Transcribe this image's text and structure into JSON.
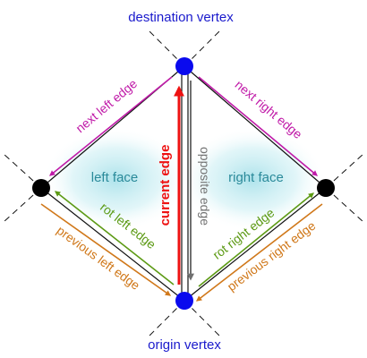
{
  "labels": {
    "destination_vertex": "destination vertex",
    "origin_vertex": "origin vertex",
    "left_face": "left face",
    "right_face": "right face",
    "current_edge": "current edge",
    "opposite_edge": "opposite edge",
    "next_left_edge": "next left edge",
    "next_right_edge": "next right edge",
    "rot_left_edge": "rot left edge",
    "rot_right_edge": "rot right edge",
    "previous_left_edge": "previous left edge",
    "previous_right_edge": "previous right edge"
  },
  "colors": {
    "vertex_label": "#1a1acc",
    "endpoint_vertex": "#0a0aee",
    "side_vertex": "#000000",
    "face_label": "#2a8a9a",
    "face_glow": "#a9e1ea",
    "current_edge": "#ee1111",
    "opposite_edge": "#707070",
    "next_edge": "#c01aa8",
    "rot_edge": "#5c9a14",
    "previous_edge": "#d0781a",
    "edge_line": "#111111"
  }
}
